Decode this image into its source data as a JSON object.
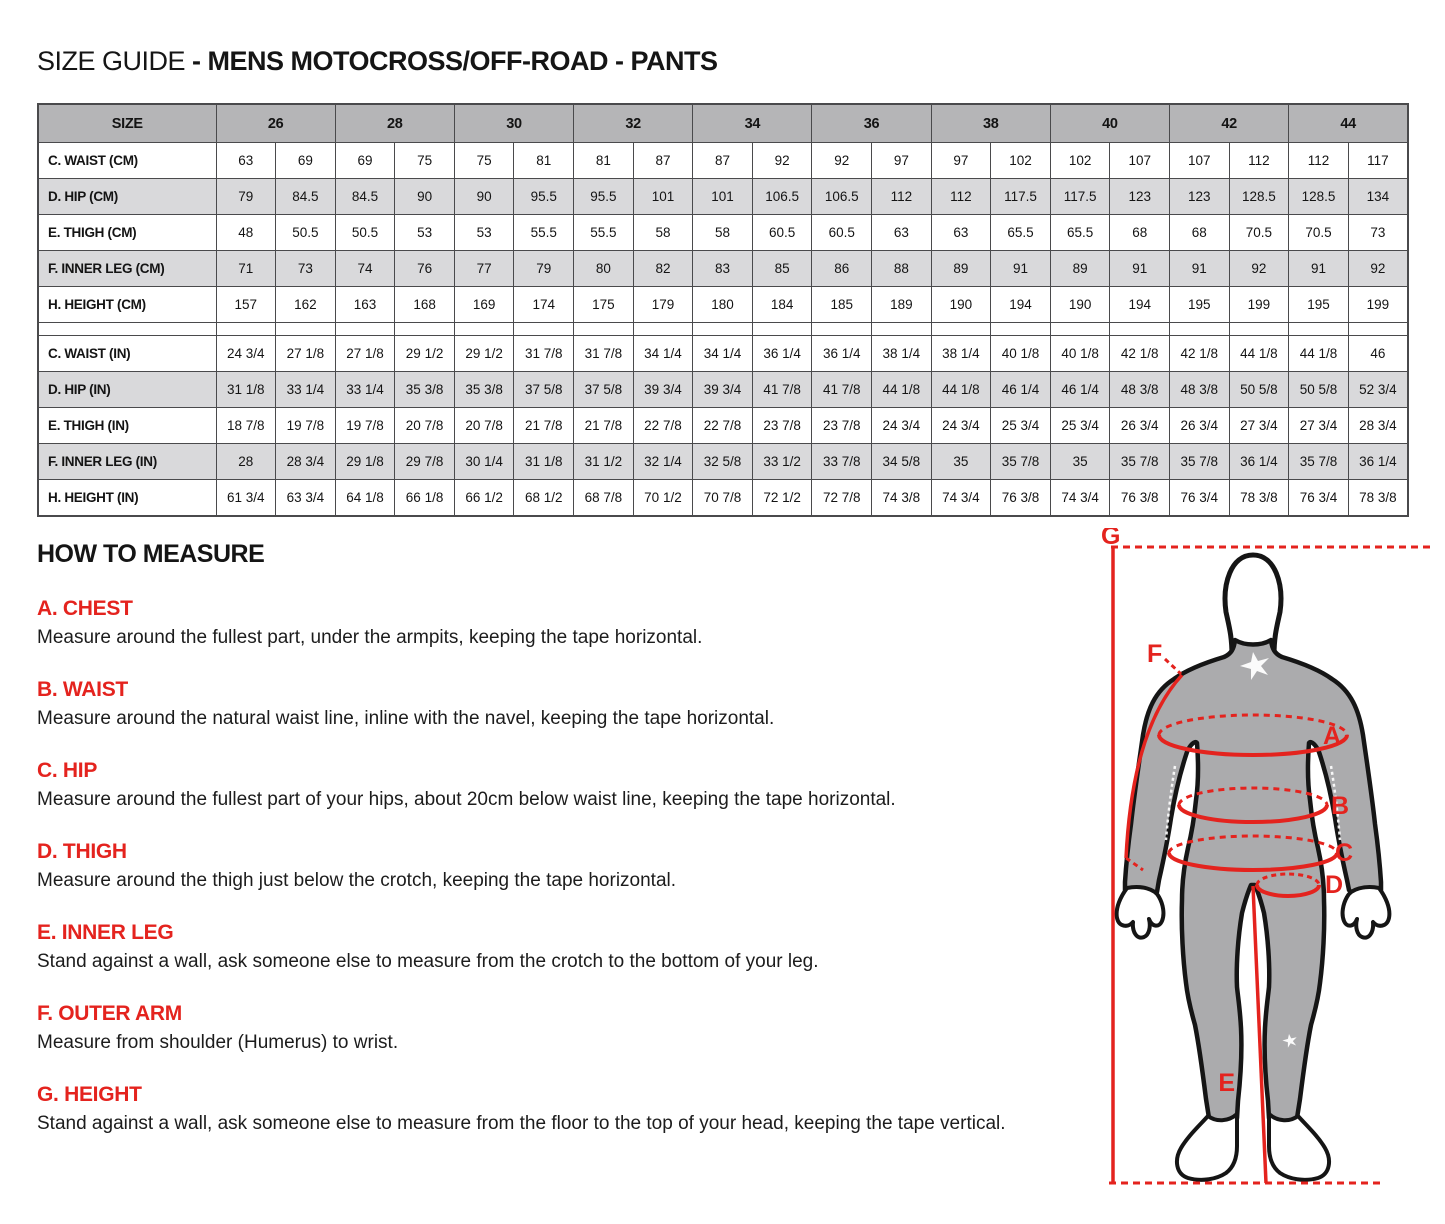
{
  "title": {
    "regular": "SIZE GUIDE ",
    "bold": "- MENS MOTOCROSS/OFF-ROAD - PANTS"
  },
  "size_table": {
    "header_label": "SIZE",
    "sizes": [
      "26",
      "28",
      "30",
      "32",
      "34",
      "36",
      "38",
      "40",
      "42",
      "44"
    ],
    "rows_cm": [
      {
        "label": "C. WAIST (CM)",
        "values": [
          "63",
          "69",
          "69",
          "75",
          "75",
          "81",
          "81",
          "87",
          "87",
          "92",
          "92",
          "97",
          "97",
          "102",
          "102",
          "107",
          "107",
          "112",
          "112",
          "117"
        ]
      },
      {
        "label": "D. HIP (CM)",
        "values": [
          "79",
          "84.5",
          "84.5",
          "90",
          "90",
          "95.5",
          "95.5",
          "101",
          "101",
          "106.5",
          "106.5",
          "112",
          "112",
          "117.5",
          "117.5",
          "123",
          "123",
          "128.5",
          "128.5",
          "134"
        ]
      },
      {
        "label": "E. THIGH (CM)",
        "values": [
          "48",
          "50.5",
          "50.5",
          "53",
          "53",
          "55.5",
          "55.5",
          "58",
          "58",
          "60.5",
          "60.5",
          "63",
          "63",
          "65.5",
          "65.5",
          "68",
          "68",
          "70.5",
          "70.5",
          "73"
        ]
      },
      {
        "label": "F. INNER LEG (CM)",
        "values": [
          "71",
          "73",
          "74",
          "76",
          "77",
          "79",
          "80",
          "82",
          "83",
          "85",
          "86",
          "88",
          "89",
          "91",
          "89",
          "91",
          "91",
          "92",
          "91",
          "92"
        ]
      },
      {
        "label": "H. HEIGHT (CM)",
        "values": [
          "157",
          "162",
          "163",
          "168",
          "169",
          "174",
          "175",
          "179",
          "180",
          "184",
          "185",
          "189",
          "190",
          "194",
          "190",
          "194",
          "195",
          "199",
          "195",
          "199"
        ]
      }
    ],
    "rows_in": [
      {
        "label": "C. WAIST (IN)",
        "values": [
          "24 3/4",
          "27 1/8",
          "27 1/8",
          "29 1/2",
          "29 1/2",
          "31 7/8",
          "31 7/8",
          "34 1/4",
          "34 1/4",
          "36 1/4",
          "36 1/4",
          "38 1/4",
          "38 1/4",
          "40 1/8",
          "40 1/8",
          "42 1/8",
          "42 1/8",
          "44 1/8",
          "44 1/8",
          "46"
        ]
      },
      {
        "label": "D. HIP (IN)",
        "values": [
          "31 1/8",
          "33 1/4",
          "33 1/4",
          "35 3/8",
          "35 3/8",
          "37 5/8",
          "37 5/8",
          "39 3/4",
          "39 3/4",
          "41 7/8",
          "41 7/8",
          "44 1/8",
          "44 1/8",
          "46 1/4",
          "46 1/4",
          "48 3/8",
          "48 3/8",
          "50 5/8",
          "50 5/8",
          "52 3/4"
        ]
      },
      {
        "label": "E. THIGH (IN)",
        "values": [
          "18 7/8",
          "19 7/8",
          "19 7/8",
          "20 7/8",
          "20 7/8",
          "21 7/8",
          "21 7/8",
          "22 7/8",
          "22 7/8",
          "23 7/8",
          "23 7/8",
          "24 3/4",
          "24 3/4",
          "25 3/4",
          "25 3/4",
          "26 3/4",
          "26 3/4",
          "27 3/4",
          "27 3/4",
          "28 3/4"
        ]
      },
      {
        "label": "F. INNER LEG (IN)",
        "values": [
          "28",
          "28 3/4",
          "29 1/8",
          "29 7/8",
          "30 1/4",
          "31 1/8",
          "31 1/2",
          "32 1/4",
          "32 5/8",
          "33 1/2",
          "33 7/8",
          "34 5/8",
          "35",
          "35 7/8",
          "35",
          "35 7/8",
          "35 7/8",
          "36 1/4",
          "35 7/8",
          "36 1/4"
        ]
      },
      {
        "label": "H. HEIGHT (IN)",
        "values": [
          "61 3/4",
          "63 3/4",
          "64 1/8",
          "66 1/8",
          "66 1/2",
          "68 1/2",
          "68 7/8",
          "70 1/2",
          "70 7/8",
          "72 1/2",
          "72 7/8",
          "74 3/8",
          "74 3/4",
          "76 3/8",
          "74 3/4",
          "76 3/8",
          "76 3/4",
          "78 3/8",
          "76 3/4",
          "78 3/8"
        ]
      }
    ]
  },
  "how_to_measure": {
    "heading": "HOW TO MEASURE",
    "sections": [
      {
        "label": "A. CHEST",
        "text": "Measure around the fullest part, under the armpits, keeping the tape horizontal."
      },
      {
        "label": "B. WAIST",
        "text": "Measure around the natural waist line, inline with the navel, keeping the tape horizontal."
      },
      {
        "label": "C. HIP",
        "text": "Measure around the fullest part of your hips, about 20cm below waist line, keeping the tape horizontal."
      },
      {
        "label": "D. THIGH",
        "text": "Measure around the thigh just below the crotch, keeping the tape horizontal."
      },
      {
        "label": "E. INNER LEG",
        "text": "Stand against a wall, ask someone else to measure from the crotch to the bottom of your leg."
      },
      {
        "label": "F. OUTER ARM",
        "text": "Measure from shoulder (Humerus) to wrist."
      },
      {
        "label": "G. HEIGHT",
        "text": "Stand against a wall, ask someone else to measure from the floor to the top of your head, keeping the tape vertical."
      }
    ]
  },
  "figure": {
    "labels": {
      "a": "A",
      "b": "B",
      "c": "C",
      "d": "D",
      "e": "E",
      "f": "F",
      "g": "G"
    }
  },
  "colors": {
    "accent_red": "#e4231e",
    "table_border": "#4a4a4c",
    "table_header_gray": "#b5b5b7",
    "table_alt_row_gray": "#d9d9db",
    "figure_body_gray": "#ababad"
  }
}
